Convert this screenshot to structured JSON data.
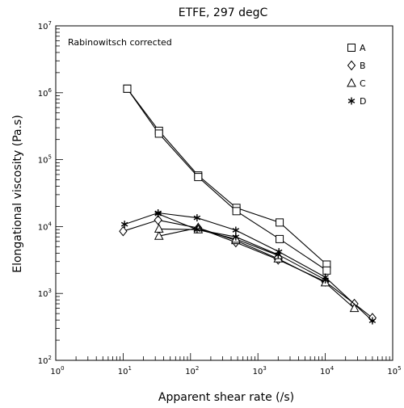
{
  "chart_data": {
    "type": "line",
    "title": "ETFE, 297 degC",
    "xlabel": "Apparent shear rate (/s)",
    "ylabel": "Elongational viscosity (Pa.s)",
    "annotation": "Rabinowitsch corrected",
    "xscale": "log",
    "yscale": "log",
    "xlim": [
      1,
      100000
    ],
    "ylim": [
      100,
      10000000
    ],
    "x_ticks": [
      {
        "value": 1,
        "base": "10",
        "exp": "0"
      },
      {
        "value": 10,
        "base": "10",
        "exp": "1"
      },
      {
        "value": 100,
        "base": "10",
        "exp": "2"
      },
      {
        "value": 1000,
        "base": "10",
        "exp": "3"
      },
      {
        "value": 10000,
        "base": "10",
        "exp": "4"
      },
      {
        "value": 100000,
        "base": "10",
        "exp": "5"
      }
    ],
    "y_ticks": [
      {
        "value": 100,
        "base": "10",
        "exp": "2"
      },
      {
        "value": 1000,
        "base": "10",
        "exp": "3"
      },
      {
        "value": 10000,
        "base": "10",
        "exp": "4"
      },
      {
        "value": 100000,
        "base": "10",
        "exp": "5"
      },
      {
        "value": 1000000,
        "base": "10",
        "exp": "6"
      },
      {
        "value": 10000000,
        "base": "10",
        "exp": "7"
      }
    ],
    "grid": false,
    "legend_position": "top-right",
    "series": [
      {
        "name": "A",
        "marker": "square",
        "lines": [
          [
            [
              11.5,
              1150000
            ],
            [
              34,
              270000
            ],
            [
              130,
              58000
            ],
            [
              480,
              19000
            ],
            [
              2100,
              11500
            ],
            [
              10500,
              2700
            ]
          ],
          [
            [
              11.5,
              1150000
            ],
            [
              34,
              245000
            ],
            [
              130,
              55000
            ],
            [
              480,
              17000
            ],
            [
              2100,
              6500
            ],
            [
              10500,
              2200
            ]
          ]
        ]
      },
      {
        "name": "B",
        "marker": "diamond",
        "lines": [
          [
            [
              10,
              8500
            ],
            [
              33,
              12500
            ],
            [
              130,
              9500
            ],
            [
              470,
              5800
            ],
            [
              2000,
              3200
            ],
            [
              10000,
              1500
            ],
            [
              27000,
              700
            ],
            [
              50000,
              430
            ]
          ]
        ]
      },
      {
        "name": "C",
        "marker": "triangle",
        "lines": [
          [
            [
              34,
              7200
            ],
            [
              130,
              9600
            ],
            [
              470,
              6200
            ],
            [
              2000,
              3300
            ],
            [
              10000,
              1450
            ],
            [
              27000,
              600
            ]
          ],
          [
            [
              34,
              9200
            ],
            [
              130,
              9000
            ],
            [
              470,
              6500
            ],
            [
              2000,
              3700
            ]
          ]
        ]
      },
      {
        "name": "D",
        "marker": "asterisk",
        "lines": [
          [
            [
              10.5,
              10800
            ],
            [
              33,
              16000
            ],
            [
              125,
              13500
            ],
            [
              470,
              8800
            ],
            [
              2050,
              4200
            ],
            [
              10000,
              1750
            ],
            [
              50000,
              390
            ]
          ],
          [
            [
              33,
              15500
            ],
            [
              125,
              9000
            ],
            [
              470,
              7000
            ],
            [
              2000,
              3800
            ],
            [
              10000,
              1600
            ]
          ]
        ]
      }
    ]
  }
}
